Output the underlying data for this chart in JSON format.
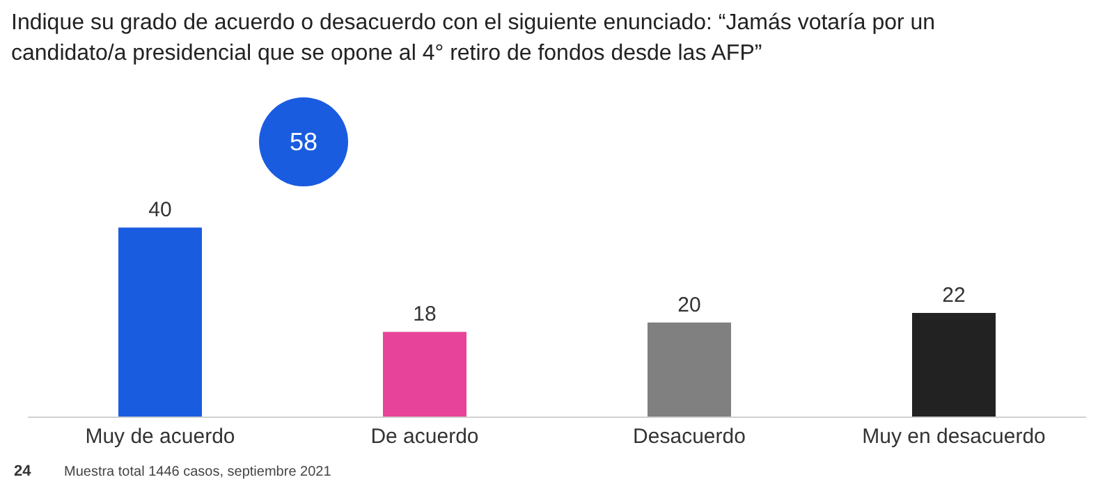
{
  "chart_data": {
    "type": "bar",
    "title": "Indique su grado de acuerdo o desacuerdo con el siguiente enunciado: “Jamás votaría por un candidato/a presidencial que se opone al 4° retiro de fondos desde las AFP”",
    "categories": [
      "Muy de acuerdo",
      "De acuerdo",
      "Desacuerdo",
      "Muy en desacuerdo"
    ],
    "values": [
      40,
      18,
      20,
      22
    ],
    "colors": [
      "#1a5ce0",
      "#e8439a",
      "#808080",
      "#222222"
    ],
    "data_labels": true,
    "annotations": [
      "58",
      "24",
      "Muestra total 1446 casos, septiembre 2021"
    ]
  }
}
